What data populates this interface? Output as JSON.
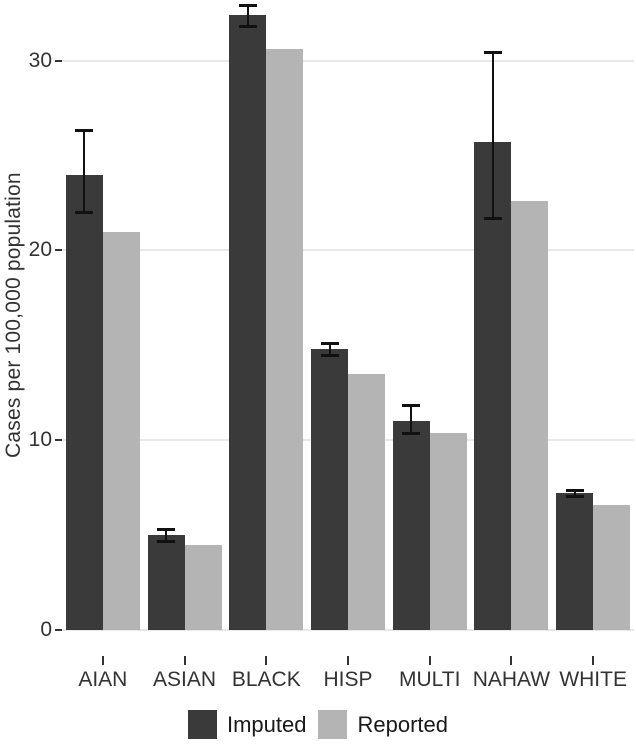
{
  "figure": {
    "kind": "grouped-bar-chart-with-error-bars"
  },
  "chart_data": {
    "type": "bar",
    "title": "",
    "xlabel": "",
    "ylabel": "Cases per 100,000 population",
    "categories": [
      "AIAN",
      "ASIAN",
      "BLACK",
      "HISP",
      "MULTI",
      "NAHAW",
      "WHITE"
    ],
    "series": [
      {
        "name": "Imputed",
        "color": "#3a3a3a",
        "values": [
          24.0,
          5.0,
          32.4,
          14.8,
          11.0,
          25.7,
          7.2
        ],
        "error_low": [
          21.9,
          4.6,
          31.7,
          14.4,
          10.3,
          21.6,
          6.95
        ],
        "error_high": [
          26.4,
          5.4,
          33.0,
          15.2,
          11.9,
          30.5,
          7.45
        ]
      },
      {
        "name": "Reported",
        "color": "#b4b4b4",
        "values": [
          21.0,
          4.5,
          30.6,
          13.5,
          10.4,
          22.6,
          6.6
        ]
      }
    ],
    "yticks": [
      0,
      10,
      20,
      30
    ],
    "ylim": [
      0,
      33.2
    ],
    "grid": true,
    "gridline_color": "#e8e8e8",
    "legend_position": "bottom",
    "legend_entries": [
      "Imputed",
      "Reported"
    ]
  },
  "colors": {
    "imputed": "#3a3a3a",
    "reported": "#b4b4b4",
    "errorbar": "#111111",
    "axis_text": "#333333",
    "gridline": "#e8e8e8",
    "background": "#ffffff"
  }
}
